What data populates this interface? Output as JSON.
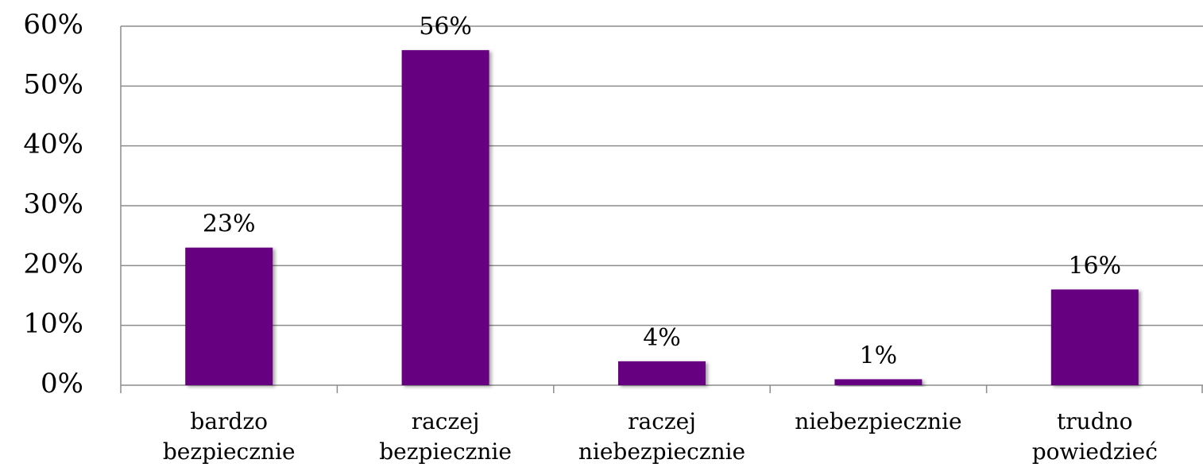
{
  "chart_data": {
    "type": "bar",
    "categories": [
      "bardzo bezpiecznie",
      "raczej bezpiecznie",
      "raczej niebezpiecznie",
      "niebezpiecznie",
      "trudno powiedzieć"
    ],
    "values": [
      23,
      56,
      4,
      1,
      16
    ],
    "value_labels": [
      "23%",
      "56%",
      "4%",
      "1%",
      "16%"
    ],
    "color": "#660080",
    "ylim": [
      0,
      60
    ],
    "yticks": [
      {
        "value": 0,
        "label": "0%"
      },
      {
        "value": 10,
        "label": "10%"
      },
      {
        "value": 20,
        "label": "20%"
      },
      {
        "value": 30,
        "label": "30%"
      },
      {
        "value": 40,
        "label": "40%"
      },
      {
        "value": 50,
        "label": "50%"
      },
      {
        "value": 60,
        "label": "60%"
      }
    ],
    "grid": true
  }
}
